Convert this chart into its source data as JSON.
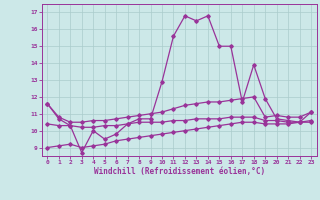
{
  "xlabel": "Windchill (Refroidissement éolien,°C)",
  "background_color": "#cce8e8",
  "grid_color": "#aacccc",
  "line_color": "#993399",
  "xlim": [
    -0.5,
    23.5
  ],
  "ylim": [
    8.5,
    17.5
  ],
  "yticks": [
    9,
    10,
    11,
    12,
    13,
    14,
    15,
    16,
    17
  ],
  "xticks": [
    0,
    1,
    2,
    3,
    4,
    5,
    6,
    7,
    8,
    9,
    10,
    11,
    12,
    13,
    14,
    15,
    16,
    17,
    18,
    19,
    20,
    21,
    22,
    23
  ],
  "series": {
    "main": {
      "x": [
        0,
        1,
        2,
        3,
        4,
        5,
        6,
        7,
        8,
        9,
        10,
        11,
        12,
        13,
        14,
        15,
        16,
        17,
        18,
        19,
        20,
        21,
        22,
        23
      ],
      "y": [
        11.6,
        10.7,
        10.3,
        8.7,
        10.0,
        9.5,
        9.8,
        10.4,
        10.7,
        10.7,
        12.9,
        15.6,
        16.8,
        16.5,
        16.8,
        15.0,
        15.0,
        11.7,
        13.9,
        11.9,
        10.7,
        10.6,
        10.5,
        11.1
      ]
    },
    "upper": {
      "x": [
        0,
        1,
        2,
        3,
        4,
        5,
        6,
        7,
        8,
        9,
        10,
        11,
        12,
        13,
        14,
        15,
        16,
        17,
        18,
        19,
        20,
        21,
        22,
        23
      ],
      "y": [
        11.6,
        10.8,
        10.5,
        10.5,
        10.6,
        10.6,
        10.7,
        10.8,
        10.9,
        11.0,
        11.1,
        11.3,
        11.5,
        11.6,
        11.7,
        11.7,
        11.8,
        11.9,
        12.0,
        10.8,
        10.9,
        10.8,
        10.8,
        11.1
      ]
    },
    "mid": {
      "x": [
        0,
        1,
        2,
        3,
        4,
        5,
        6,
        7,
        8,
        9,
        10,
        11,
        12,
        13,
        14,
        15,
        16,
        17,
        18,
        19,
        20,
        21,
        22,
        23
      ],
      "y": [
        10.4,
        10.3,
        10.3,
        10.2,
        10.2,
        10.3,
        10.3,
        10.4,
        10.5,
        10.5,
        10.5,
        10.6,
        10.6,
        10.7,
        10.7,
        10.7,
        10.8,
        10.8,
        10.8,
        10.6,
        10.6,
        10.5,
        10.5,
        10.6
      ]
    },
    "lower": {
      "x": [
        0,
        1,
        2,
        3,
        4,
        5,
        6,
        7,
        8,
        9,
        10,
        11,
        12,
        13,
        14,
        15,
        16,
        17,
        18,
        19,
        20,
        21,
        22,
        23
      ],
      "y": [
        9.0,
        9.1,
        9.2,
        9.0,
        9.1,
        9.2,
        9.4,
        9.5,
        9.6,
        9.7,
        9.8,
        9.9,
        10.0,
        10.1,
        10.2,
        10.3,
        10.4,
        10.5,
        10.5,
        10.4,
        10.4,
        10.4,
        10.5,
        10.5
      ]
    }
  }
}
